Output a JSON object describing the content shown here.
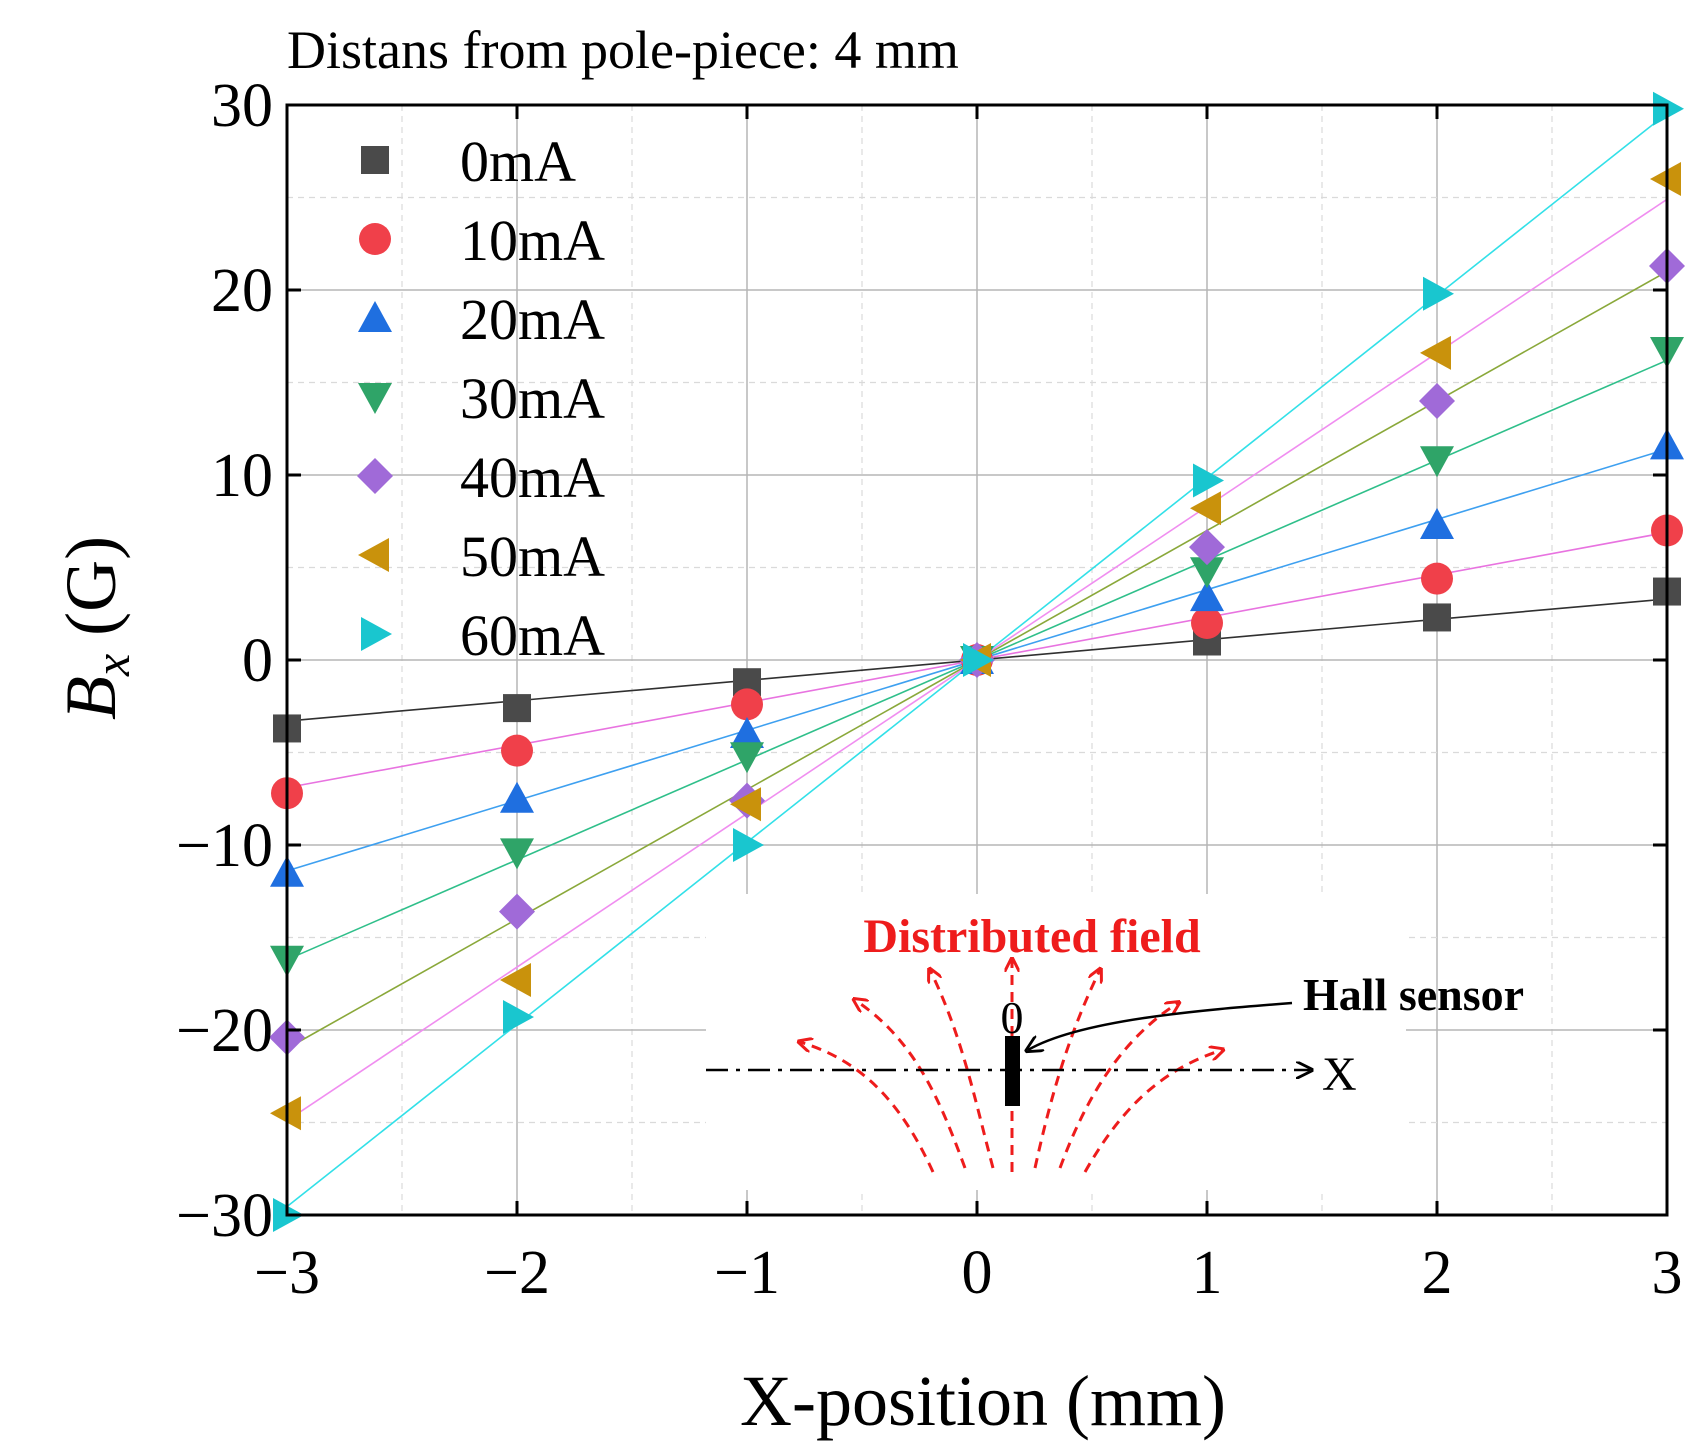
{
  "chart_data": {
    "type": "scatter",
    "title": "Distans from pole-piece: 4 mm",
    "xlabel": "X-position (mm)",
    "ylabel": "B",
    "ylabel_sub": "x",
    "ylabel_unit": " (G)",
    "xlim": [
      -3,
      3
    ],
    "ylim": [
      -30,
      30
    ],
    "xticks": [
      -3,
      -2,
      -1,
      0,
      1,
      2,
      3
    ],
    "xtick_labels": [
      "−3",
      "−2",
      "−1",
      "0",
      "1",
      "2",
      "3"
    ],
    "yticks": [
      -30,
      -20,
      -10,
      0,
      10,
      20,
      30
    ],
    "ytick_labels": [
      "−30",
      "−20",
      "−10",
      "0",
      "10",
      "20",
      "30"
    ],
    "grid": true,
    "legend_position": "top-left",
    "x": [
      -3,
      -2,
      -1,
      0,
      1,
      2,
      3
    ],
    "series": [
      {
        "name": "0mA",
        "marker": "square",
        "color": "#4a4a4a",
        "fit_color": "#303030",
        "values": [
          -3.7,
          -2.6,
          -1.2,
          0.0,
          1.0,
          2.3,
          3.7
        ],
        "fit_slope": 1.1
      },
      {
        "name": "10mA",
        "marker": "circle",
        "color": "#f0404a",
        "fit_color": "#e873e0",
        "values": [
          -7.2,
          -4.9,
          -2.4,
          0.0,
          2.0,
          4.4,
          7.0
        ],
        "fit_slope": 2.3
      },
      {
        "name": "20mA",
        "marker": "triangle-up",
        "color": "#1f6fe0",
        "fit_color": "#3ea0f0",
        "values": [
          -11.5,
          -7.5,
          -4.0,
          0.0,
          3.4,
          7.3,
          11.6
        ],
        "fit_slope": 3.8
      },
      {
        "name": "30mA",
        "marker": "triangle-down",
        "color": "#2fa468",
        "fit_color": "#2fbf8a",
        "values": [
          -16.2,
          -10.4,
          -5.2,
          0.0,
          4.8,
          10.8,
          16.7
        ],
        "fit_slope": 5.4
      },
      {
        "name": "40mA",
        "marker": "diamond",
        "color": "#a06ad8",
        "fit_color": "#8aa83a",
        "values": [
          -20.4,
          -13.6,
          -7.6,
          0.0,
          6.1,
          14.0,
          21.3
        ],
        "fit_slope": 7.0
      },
      {
        "name": "50mA",
        "marker": "triangle-left",
        "color": "#c9920c",
        "fit_color": "#f08ef0",
        "values": [
          -24.5,
          -17.3,
          -7.8,
          0.0,
          8.2,
          16.6,
          26.0
        ],
        "fit_slope": 8.3
      },
      {
        "name": "60mA",
        "marker": "triangle-right",
        "color": "#19c6cf",
        "fit_color": "#32e0e8",
        "values": [
          -30.0,
          -19.3,
          -10.0,
          0.0,
          9.7,
          19.8,
          29.8
        ],
        "fit_slope": 9.85
      }
    ],
    "inset": {
      "title": "Distributed field",
      "title_color": "#ee1c1c",
      "zero_label": "0",
      "sensor_label": "Hall sensor",
      "axis_label": "X"
    }
  }
}
